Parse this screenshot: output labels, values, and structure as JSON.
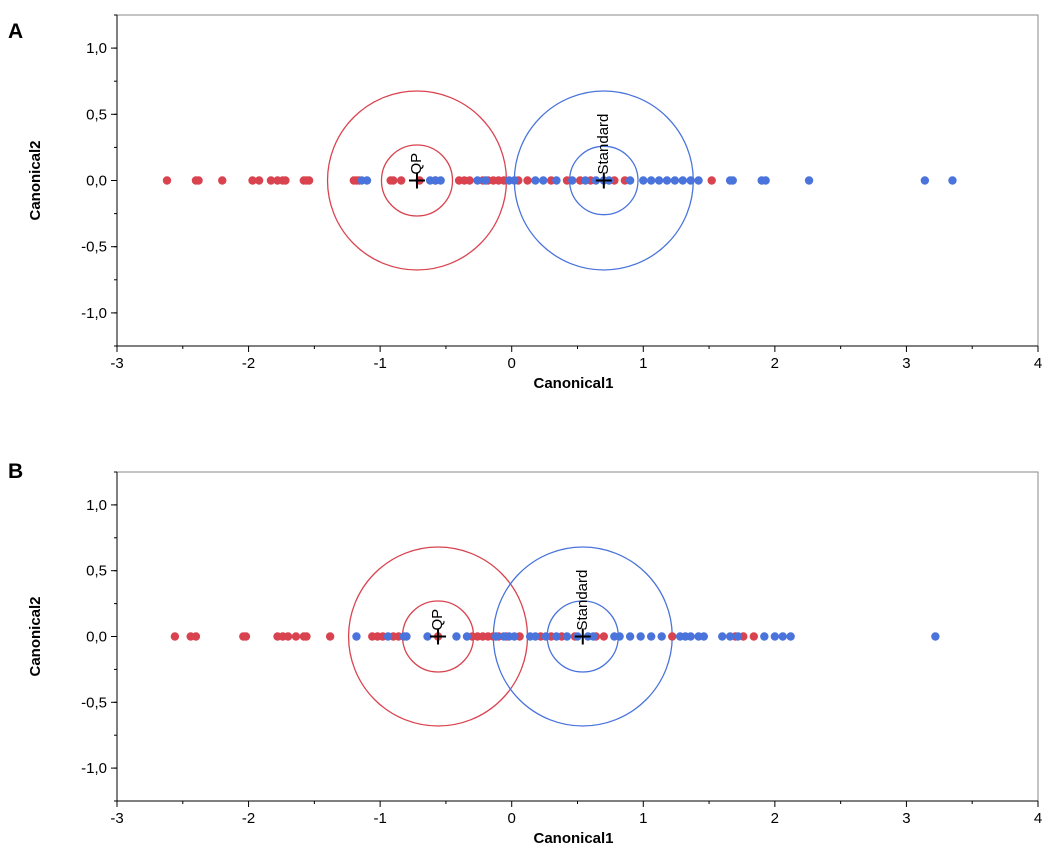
{
  "colors": {
    "QP": "#d9434f",
    "Standard": "#4a74dc",
    "frame": "#8a8a8a"
  },
  "chart_data": [
    {
      "panel_label": "A",
      "type": "scatter",
      "xlabel": "Canonical1",
      "ylabel": "Canonical2",
      "xlim": [
        -3,
        4
      ],
      "ylim": [
        -1.25,
        1.25
      ],
      "xticks": [
        -3,
        -2,
        -1,
        0,
        1,
        2,
        3,
        4
      ],
      "xtick_labels": [
        "-3",
        "-2",
        "-1",
        "0",
        "1",
        "2",
        "3",
        "4"
      ],
      "yticks": [
        1.0,
        0.5,
        0.0,
        -0.5,
        -1.0
      ],
      "ytick_labels": [
        "1,0",
        "0,5",
        "0,0",
        "-0,5",
        "-1,0"
      ],
      "grid": false,
      "series": [
        {
          "name": "QP",
          "color": "#d9434f",
          "x": [
            -2.62,
            -2.4,
            -2.38,
            -2.2,
            -1.97,
            -1.92,
            -1.83,
            -1.78,
            -1.74,
            -1.72,
            -1.58,
            -1.56,
            -1.54,
            -1.2,
            -1.18,
            -1.16,
            -0.92,
            -0.9,
            -0.84,
            -0.7,
            -0.58,
            -0.4,
            -0.36,
            -0.32,
            -0.22,
            -0.18,
            -0.14,
            -0.1,
            -0.06,
            0.05,
            0.12,
            0.3,
            0.42,
            0.52,
            0.6,
            0.78,
            0.86,
            1.52
          ],
          "y": [
            0,
            0,
            0,
            0,
            0,
            0,
            0,
            0,
            0,
            0,
            0,
            0,
            0,
            0,
            0,
            0,
            0,
            0,
            0,
            0,
            0,
            0,
            0,
            0,
            0,
            0,
            0,
            0,
            0,
            0,
            0,
            0,
            0,
            0,
            0,
            0,
            0,
            0
          ]
        },
        {
          "name": "Standard",
          "color": "#4a74dc",
          "x": [
            -1.14,
            -1.1,
            -0.62,
            -0.58,
            -0.54,
            -0.26,
            -0.2,
            -0.02,
            0.02,
            0.18,
            0.24,
            0.34,
            0.46,
            0.56,
            0.64,
            0.7,
            0.74,
            0.9,
            1.0,
            1.06,
            1.12,
            1.18,
            1.24,
            1.3,
            1.36,
            1.42,
            1.66,
            1.68,
            1.9,
            1.93,
            2.26,
            3.14,
            3.35
          ],
          "y": [
            0,
            0,
            0,
            0,
            0,
            0,
            0,
            0,
            0,
            0,
            0,
            0,
            0,
            0,
            0,
            0,
            0,
            0,
            0,
            0,
            0,
            0,
            0,
            0,
            0,
            0,
            0,
            0,
            0,
            0,
            0,
            0,
            0
          ]
        }
      ],
      "means": [
        {
          "label": "QP",
          "x": -0.72,
          "y": 0.0,
          "inner_radius": 0.27,
          "outer_radius": 0.68,
          "color": "#d9434f"
        },
        {
          "label": "Standard",
          "x": 0.7,
          "y": 0.0,
          "inner_radius": 0.26,
          "outer_radius": 0.68,
          "color": "#4a74dc"
        }
      ]
    },
    {
      "panel_label": "B",
      "type": "scatter",
      "xlabel": "Canonical1",
      "ylabel": "Canonical2",
      "xlim": [
        -3,
        4
      ],
      "ylim": [
        -1.25,
        1.25
      ],
      "xticks": [
        -3,
        -2,
        -1,
        0,
        1,
        2,
        3,
        4
      ],
      "xtick_labels": [
        "-3",
        "-2",
        "-1",
        "0",
        "1",
        "2",
        "3",
        "4"
      ],
      "yticks": [
        1.0,
        0.5,
        0.0,
        -0.5,
        -1.0
      ],
      "ytick_labels": [
        "1,0",
        "0,5",
        "0,0",
        "-0,5",
        "-1,0"
      ],
      "grid": false,
      "series": [
        {
          "name": "QP",
          "color": "#d9434f",
          "x": [
            -2.56,
            -2.44,
            -2.4,
            -2.04,
            -2.02,
            -1.78,
            -1.74,
            -1.7,
            -1.64,
            -1.58,
            -1.56,
            -1.38,
            -1.06,
            -1.02,
            -0.98,
            -0.9,
            -0.86,
            -0.56,
            -0.3,
            -0.26,
            -0.22,
            -0.18,
            -0.14,
            -0.1,
            -0.04,
            0.06,
            0.22,
            0.3,
            0.38,
            0.48,
            0.64,
            0.7,
            1.22,
            1.7,
            1.76,
            1.84
          ],
          "y": [
            0,
            0,
            0,
            0,
            0,
            0,
            0,
            0,
            0,
            0,
            0,
            0,
            0,
            0,
            0,
            0,
            0,
            0,
            0,
            0,
            0,
            0,
            0,
            0,
            0,
            0,
            0,
            0,
            0,
            0,
            0,
            0,
            0,
            0,
            0,
            0
          ]
        },
        {
          "name": "Standard",
          "color": "#4a74dc",
          "x": [
            -1.18,
            -0.94,
            -0.82,
            -0.8,
            -0.64,
            -0.42,
            -0.34,
            -0.12,
            -0.06,
            -0.02,
            0.02,
            0.14,
            0.18,
            0.26,
            0.34,
            0.42,
            0.5,
            0.58,
            0.62,
            0.78,
            0.82,
            0.9,
            0.98,
            1.06,
            1.14,
            1.28,
            1.32,
            1.36,
            1.42,
            1.46,
            1.6,
            1.66,
            1.72,
            1.92,
            2.0,
            2.06,
            2.12,
            3.22
          ],
          "y": [
            0,
            0,
            0,
            0,
            0,
            0,
            0,
            0,
            0,
            0,
            0,
            0,
            0,
            0,
            0,
            0,
            0,
            0,
            0,
            0,
            0,
            0,
            0,
            0,
            0,
            0,
            0,
            0,
            0,
            0,
            0,
            0,
            0,
            0,
            0,
            0,
            0,
            0
          ]
        }
      ],
      "means": [
        {
          "label": "QP",
          "x": -0.56,
          "y": 0.0,
          "inner_radius": 0.27,
          "outer_radius": 0.68,
          "color": "#d9434f"
        },
        {
          "label": "Standard",
          "x": 0.54,
          "y": 0.0,
          "inner_radius": 0.27,
          "outer_radius": 0.68,
          "color": "#4a74dc"
        }
      ]
    }
  ]
}
